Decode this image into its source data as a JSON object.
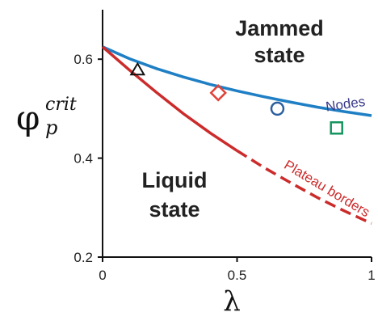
{
  "chart_data": {
    "type": "line",
    "xlabel": "λ",
    "ylabel": {
      "base": "φ",
      "subscript": "p",
      "superscript": "crit"
    },
    "xlim": [
      0,
      1
    ],
    "ylim": [
      0.2,
      0.7
    ],
    "x_ticks": [
      "0",
      "0.5",
      "1"
    ],
    "y_ticks": [
      "0.2",
      "0.4",
      "0.6"
    ],
    "x_tick_values": [
      0,
      0.5,
      1
    ],
    "y_tick_values": [
      0.2,
      0.4,
      0.6
    ],
    "grid": false,
    "regions": {
      "upper": [
        "Jammed",
        "state"
      ],
      "lower": [
        "Liquid",
        "state"
      ]
    },
    "series": [
      {
        "name": "Nodes",
        "color": "#1f7fc4",
        "style": "solid",
        "x": [
          0,
          0.1,
          0.2,
          0.3,
          0.4,
          0.5,
          0.6,
          0.7,
          0.8,
          0.9,
          1.0
        ],
        "y": [
          0.625,
          0.601,
          0.581,
          0.564,
          0.549,
          0.536,
          0.524,
          0.513,
          0.503,
          0.494,
          0.486
        ]
      },
      {
        "name": "Plateau borders",
        "color": "#cc2b2b",
        "segments": [
          {
            "style": "solid",
            "x": [
              0,
              0.1,
              0.2,
              0.3,
              0.4,
              0.5
            ],
            "y": [
              0.625,
              0.578,
              0.533,
              0.49,
              0.451,
              0.415
            ]
          },
          {
            "style": "dashed",
            "x": [
              0.5,
              0.6,
              0.7,
              0.8,
              0.9,
              1.0
            ],
            "y": [
              0.415,
              0.381,
              0.35,
              0.32,
              0.293,
              0.268
            ]
          }
        ]
      }
    ],
    "markers": [
      {
        "shape": "triangle",
        "x": 0.13,
        "y": 0.578,
        "color": "#111111"
      },
      {
        "shape": "diamond",
        "x": 0.43,
        "y": 0.532,
        "color": "#e0443a"
      },
      {
        "shape": "circle",
        "x": 0.65,
        "y": 0.5,
        "color": "#2c5f9e"
      },
      {
        "shape": "square",
        "x": 0.87,
        "y": 0.461,
        "color": "#16945f"
      }
    ]
  }
}
